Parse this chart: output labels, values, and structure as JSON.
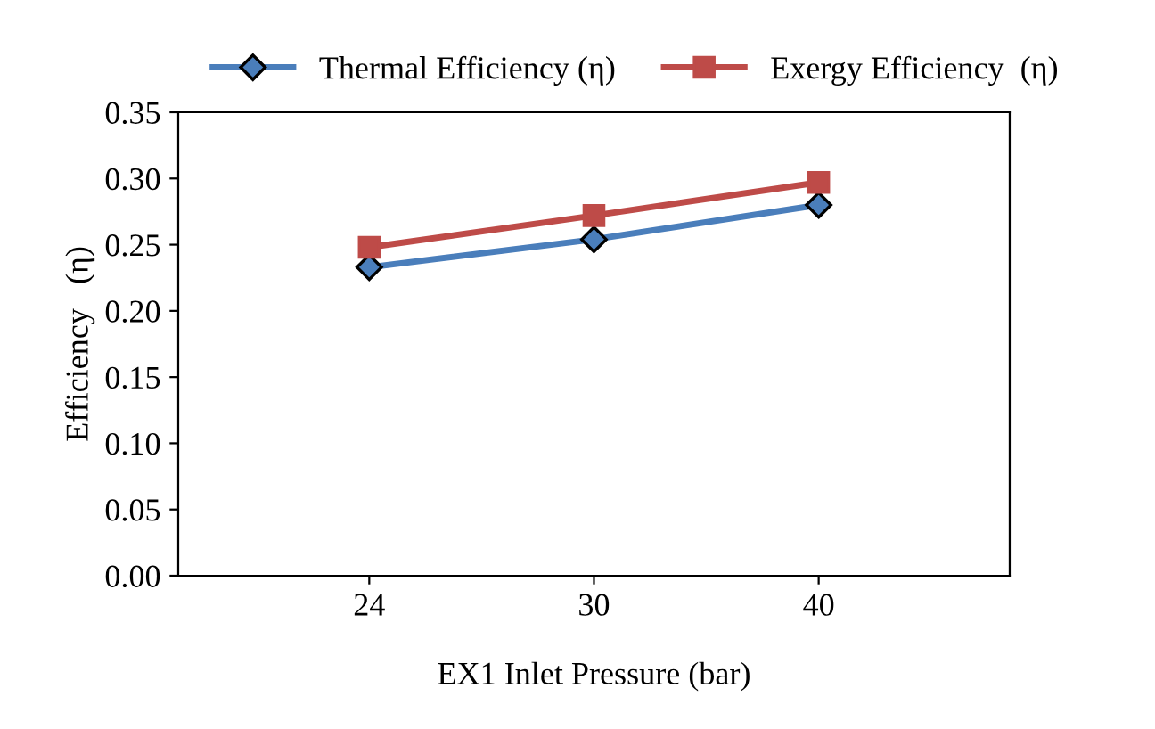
{
  "chart_data": {
    "type": "line",
    "xlabel": "EX1 Inlet Pressure (bar)",
    "ylabel": "Efficiency   (η)",
    "categories": [
      "24",
      "30",
      "40"
    ],
    "series": [
      {
        "name": "Thermal Efficiency (η)",
        "color": "#4a7ebb",
        "marker": "diamond",
        "values": [
          0.233,
          0.254,
          0.28
        ]
      },
      {
        "name": "Exergy Efficiency  (η)",
        "color": "#be4b48",
        "marker": "square",
        "values": [
          0.248,
          0.272,
          0.297
        ]
      }
    ],
    "ylim": [
      0,
      0.35
    ],
    "yticks": [
      {
        "value": 0,
        "label": "0.00"
      },
      {
        "value": 0.05,
        "label": "0.05"
      },
      {
        "value": 0.1,
        "label": "0.10"
      },
      {
        "value": 0.15,
        "label": "0.15"
      },
      {
        "value": 0.2,
        "label": "0.20"
      },
      {
        "value": 0.25,
        "label": "0.25"
      },
      {
        "value": 0.3,
        "label": "0.30"
      },
      {
        "value": 0.35,
        "label": "0.35"
      }
    ],
    "grid": false,
    "legend": "top",
    "line_style": "solid"
  }
}
